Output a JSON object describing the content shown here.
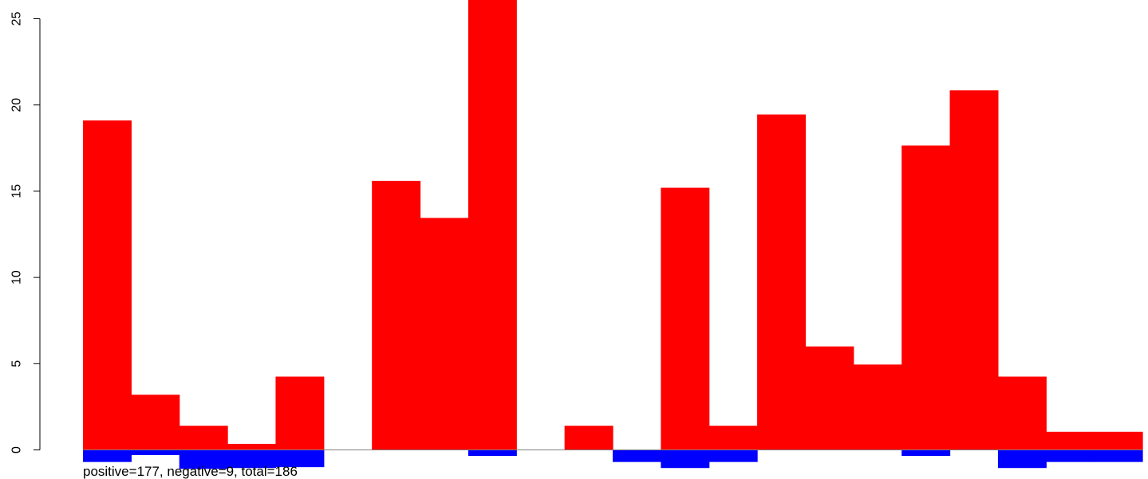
{
  "chart_data": {
    "type": "bar",
    "x_categories": 22,
    "series": [
      {
        "values": [
          19.1,
          3.2,
          1.4,
          0.35,
          4.25,
          0,
          15.6,
          13.45,
          26.2,
          0,
          1.4,
          0,
          15.2,
          1.4,
          19.45,
          6.0,
          4.95,
          17.65,
          20.85,
          4.25,
          1.05,
          1.05
        ],
        "color": "#ff0000"
      },
      {
        "values": [
          -0.7,
          -0.3,
          -1.1,
          -1.05,
          -1.0,
          0,
          0,
          0,
          -0.35,
          0,
          0,
          -0.7,
          -1.05,
          -0.7,
          0,
          0,
          0,
          -0.35,
          0,
          -1.05,
          -0.7,
          -0.7
        ],
        "color": "#0000ff"
      }
    ],
    "yticks": [
      "0",
      "5",
      "10",
      "15",
      "20",
      "25"
    ],
    "ytick_values": [
      0,
      5,
      10,
      15,
      20,
      25
    ],
    "ylim": [
      -1.6,
      26.2
    ],
    "grid": false,
    "legend": "none",
    "footer_text": "positive=177, negative=9, total=186"
  }
}
